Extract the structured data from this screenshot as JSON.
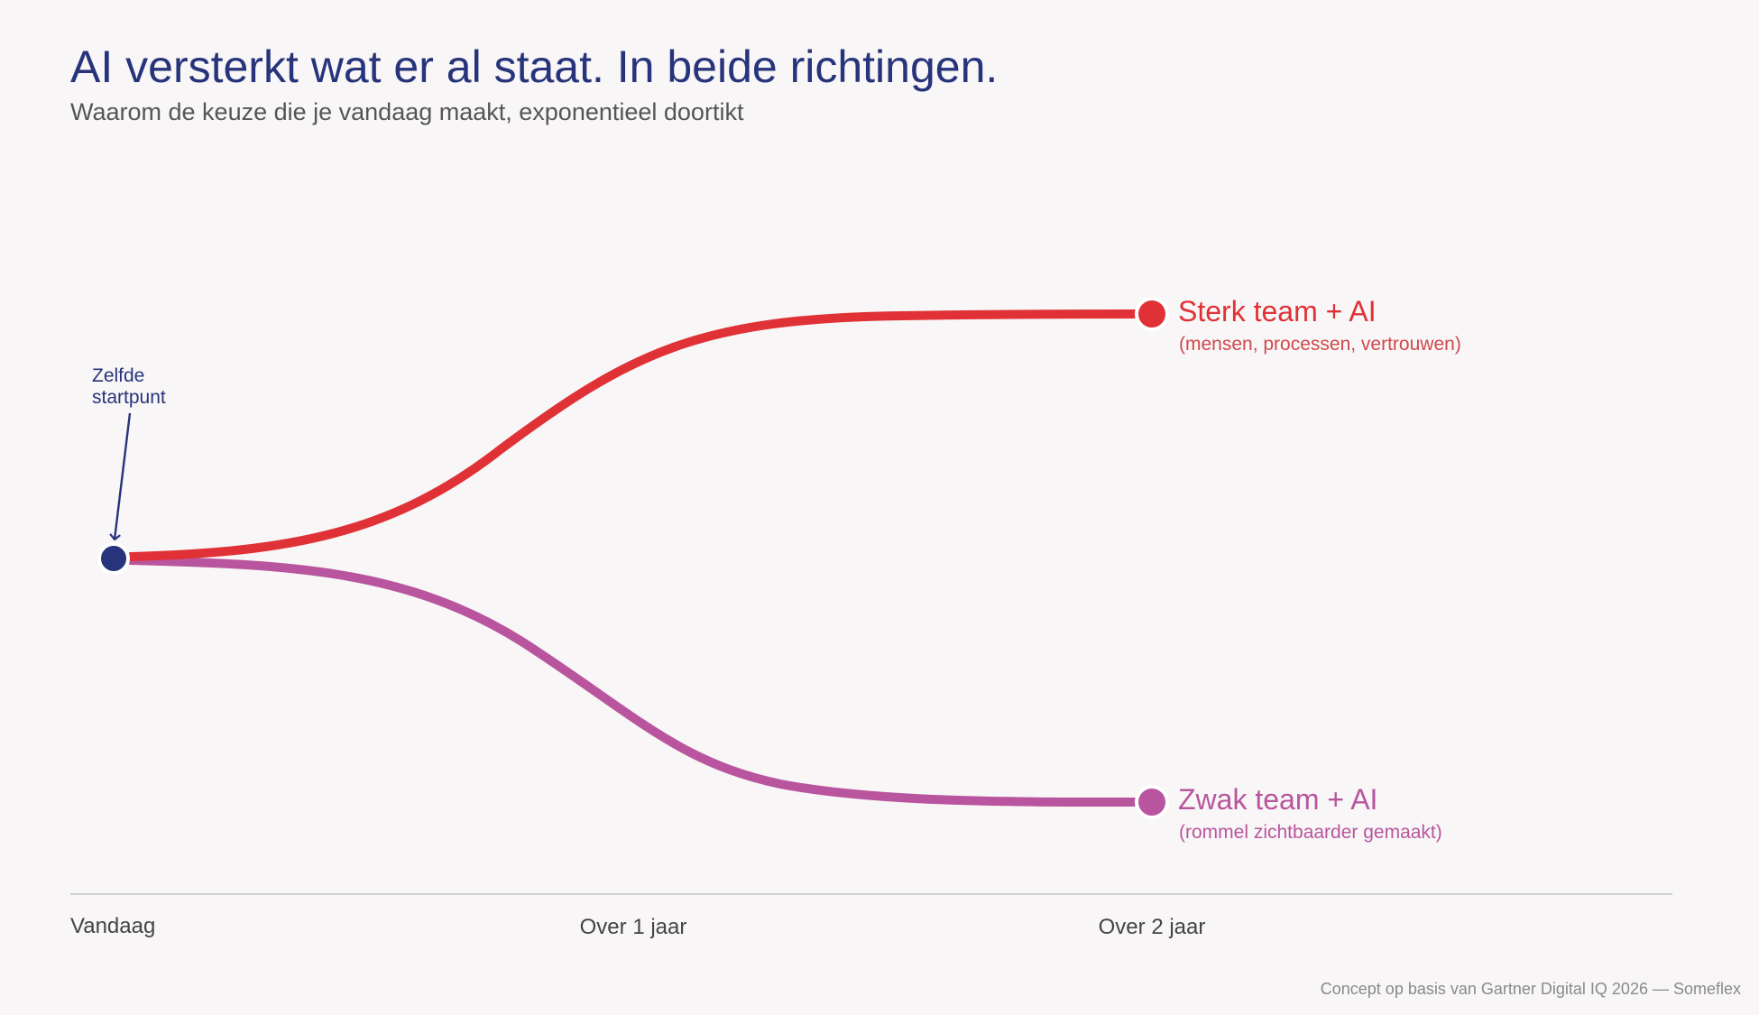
{
  "header": {
    "title": "AI versterkt wat er al staat. In beide richtingen.",
    "subtitle": "Waarom de keuze die je vandaag maakt, exponentieel doortikt"
  },
  "start": {
    "annotation_line1": "Zelfde",
    "annotation_line2": "startpunt"
  },
  "paths": {
    "strong": {
      "label": "Sterk team + AI",
      "sublabel": "(mensen, processen, vertrouwen)",
      "color": "#e03236"
    },
    "weak": {
      "label": "Zwak team + AI",
      "sublabel": "(rommel zichtbaarder gemaakt)",
      "color": "#b9559e"
    }
  },
  "timeline": {
    "labels": [
      "Vandaag",
      "Over 1 jaar",
      "Over 2 jaar"
    ]
  },
  "colors": {
    "start_dot": "#27347b",
    "axis": "#cfcfcf"
  },
  "footer": {
    "credit": "Concept op basis van Gartner Digital IQ 2026 — Someflex"
  }
}
